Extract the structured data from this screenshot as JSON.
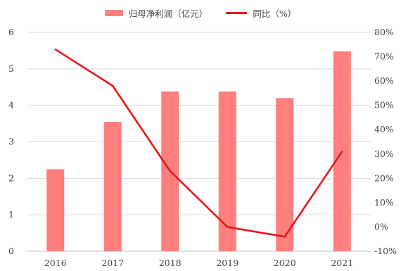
{
  "chart_data": {
    "type": "bar",
    "categories": [
      "2016",
      "2017",
      "2018",
      "2019",
      "2020",
      "2021"
    ],
    "series": [
      {
        "name": "归母净利润（亿元）",
        "type": "bar",
        "axis": "left",
        "values": [
          2.25,
          3.55,
          4.38,
          4.38,
          4.2,
          5.48
        ],
        "color": "#ff7f7f"
      },
      {
        "name": "同比（%）",
        "type": "line",
        "axis": "right",
        "values": [
          73,
          58,
          23,
          0,
          -4,
          31
        ],
        "color": "#e8161c"
      }
    ],
    "ylim_left": [
      0,
      6
    ],
    "yticks_left": [
      "0",
      "1",
      "2",
      "3",
      "4",
      "5",
      "6"
    ],
    "ylim_right": [
      -10,
      80
    ],
    "yticks_right": [
      "-10%",
      "0%",
      "10%",
      "20%",
      "30%",
      "40%",
      "50%",
      "60%",
      "70%",
      "80%"
    ],
    "grid": true,
    "legend_position": "top"
  }
}
